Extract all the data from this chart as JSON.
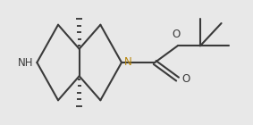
{
  "bg_color": "#e8e8e8",
  "line_color": "#3a3a3a",
  "line_width": 1.5,
  "label_NH": "NH",
  "label_N": "N",
  "label_O_ester": "O",
  "label_O_carbonyl": "O",
  "font_size": 8.5,
  "N_color": "#b8860b"
}
